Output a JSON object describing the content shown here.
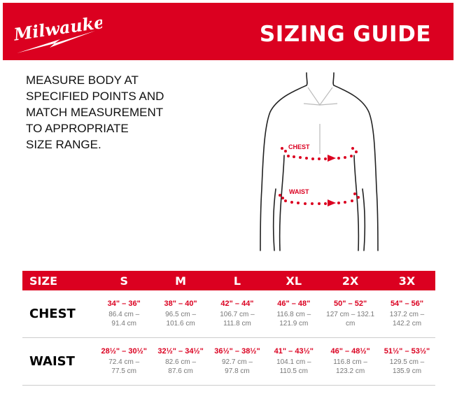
{
  "brand": "Milwaukee",
  "title": "SIZING GUIDE",
  "instructions": [
    "MEASURE BODY AT",
    "SPECIFIED POINTS AND",
    "MATCH MEASUREMENT",
    "TO APPROPRIATE",
    "SIZE RANGE."
  ],
  "figure_labels": {
    "chest": "CHEST",
    "waist": "WAIST"
  },
  "colors": {
    "brand_red": "#db0020"
  },
  "table": {
    "header": [
      "SIZE",
      "S",
      "M",
      "L",
      "XL",
      "2X",
      "3X"
    ],
    "rows": [
      {
        "label": "CHEST",
        "cells": [
          {
            "in": "34\" – 36\"",
            "cm1": "86.4 cm –",
            "cm2": "91.4 cm"
          },
          {
            "in": "38\" – 40\"",
            "cm1": "96.5 cm –",
            "cm2": "101.6 cm"
          },
          {
            "in": "42\" – 44\"",
            "cm1": "106.7 cm –",
            "cm2": "111.8 cm"
          },
          {
            "in": "46\" – 48\"",
            "cm1": "116.8 cm –",
            "cm2": "121.9 cm"
          },
          {
            "in": "50\" – 52\"",
            "cm1": "127 cm –  132.1",
            "cm2": "cm"
          },
          {
            "in": "54\" – 56\"",
            "cm1": "137.2 cm –",
            "cm2": "142.2 cm"
          }
        ]
      },
      {
        "label": "WAIST",
        "cells": [
          {
            "in": "28½\" – 30½\"",
            "cm1": "72.4 cm –",
            "cm2": "77.5 cm"
          },
          {
            "in": "32½\" – 34½\"",
            "cm1": "82.6 cm –",
            "cm2": "87.6 cm"
          },
          {
            "in": "36½\" – 38½\"",
            "cm1": "92.7 cm –",
            "cm2": "97.8 cm"
          },
          {
            "in": "41\" – 43½\"",
            "cm1": "104.1 cm –",
            "cm2": "110.5 cm"
          },
          {
            "in": "46\" – 48½\"",
            "cm1": "116.8 cm –",
            "cm2": "123.2 cm"
          },
          {
            "in": "51½\" – 53½\"",
            "cm1": "129.5 cm –",
            "cm2": "135.9 cm"
          }
        ]
      }
    ]
  }
}
